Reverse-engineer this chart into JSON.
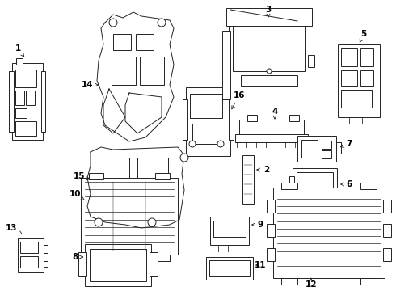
{
  "bg_color": "#ffffff",
  "line_color": "#222222",
  "fig_width": 4.9,
  "fig_height": 3.6,
  "dpi": 100
}
